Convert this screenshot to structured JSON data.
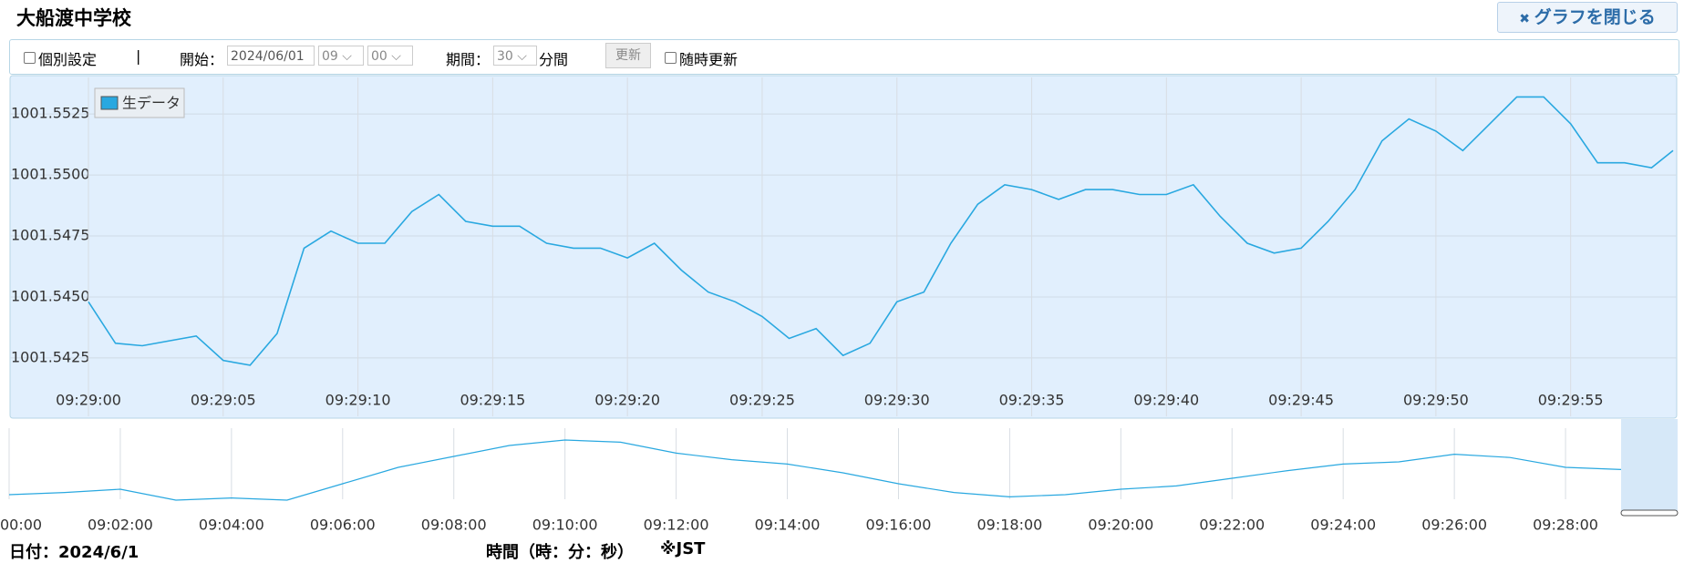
{
  "header": {
    "title": "大船渡中学校",
    "close_button": "グラフを閉じる"
  },
  "toolbar": {
    "individual_setting": "個別設定",
    "separator": "|",
    "start_label": "開始：",
    "start_date": "2024/06/01",
    "start_hour": "09",
    "start_minute": "00",
    "period_label": "期間：",
    "period_value": "30",
    "period_unit": "分間",
    "update_button": "更新",
    "auto_update": "随時更新"
  },
  "chart_data": [
    {
      "type": "line",
      "series": [
        {
          "name": "生データ",
          "color": "#29a8e0",
          "values": [
            1001.5448,
            1001.5431,
            1001.543,
            1001.5432,
            1001.5434,
            1001.5424,
            1001.5422,
            1001.5435,
            1001.547,
            1001.5477,
            1001.5472,
            1001.5472,
            1001.5485,
            1001.5492,
            1001.5481,
            1001.5479,
            1001.5479,
            1001.5472,
            1001.547,
            1001.547,
            1001.5466,
            1001.5472,
            1001.5461,
            1001.5452,
            1001.5448,
            1001.5442,
            1001.5433,
            1001.5437,
            1001.5426,
            1001.5431,
            1001.5448,
            1001.5452,
            1001.5472,
            1001.5488,
            1001.5496,
            1001.5494,
            1001.549,
            1001.5494,
            1001.5494,
            1001.5492,
            1001.5492,
            1001.5496,
            1001.5483,
            1001.5472,
            1001.5468,
            1001.547,
            1001.5481,
            1001.5494,
            1001.5514,
            1001.5523,
            1001.5518,
            1001.551,
            1001.5521,
            1001.5532,
            1001.5532,
            1001.5521,
            1001.5505,
            1001.5505,
            1001.5503,
            1001.551
          ]
        }
      ],
      "x": [
        0,
        1,
        2,
        3,
        4,
        5,
        6,
        7,
        8,
        9,
        10,
        11,
        12,
        13,
        14,
        15,
        16,
        17,
        18,
        19,
        20,
        21,
        22,
        23,
        24,
        25,
        26,
        27,
        28,
        29,
        30,
        31,
        32,
        33,
        34,
        35,
        36,
        37,
        38,
        39,
        40,
        41,
        42,
        43,
        44,
        45,
        46,
        47,
        48,
        49,
        50,
        51,
        52,
        53,
        54,
        55,
        56,
        57,
        58,
        58.8
      ],
      "xlim": [
        0,
        58.8
      ],
      "xticks": [
        {
          "value": 0,
          "label": "09:29:00"
        },
        {
          "value": 5,
          "label": "09:29:05"
        },
        {
          "value": 10,
          "label": "09:29:10"
        },
        {
          "value": 15,
          "label": "09:29:15"
        },
        {
          "value": 20,
          "label": "09:29:20"
        },
        {
          "value": 25,
          "label": "09:29:25"
        },
        {
          "value": 30,
          "label": "09:29:30"
        },
        {
          "value": 35,
          "label": "09:29:35"
        },
        {
          "value": 40,
          "label": "09:29:40"
        },
        {
          "value": 45,
          "label": "09:29:45"
        },
        {
          "value": 50,
          "label": "09:29:50"
        },
        {
          "value": 55,
          "label": "09:29:55"
        }
      ],
      "ylim": [
        1001.5413,
        1001.554
      ],
      "yticks": [
        1001.5425,
        {
          "value": 1001.545,
          "label": "1001.5450"
        },
        1001.5475,
        {
          "value": 1001.55,
          "label": "1001.5500"
        },
        1001.5525
      ],
      "grid": true,
      "legend": "top-left"
    },
    {
      "type": "line",
      "series": [
        {
          "color": "#29a8e0",
          "values": [
            10,
            12,
            15,
            5,
            7,
            5,
            20,
            35,
            45,
            55,
            60,
            58,
            48,
            42,
            38,
            30,
            20,
            12,
            8,
            10,
            15,
            18,
            25,
            32,
            38,
            40,
            47,
            44,
            35,
            33
          ]
        }
      ],
      "x": [
        0,
        1,
        2,
        3,
        4,
        5,
        6,
        7,
        8,
        9,
        10,
        11,
        12,
        13,
        14,
        15,
        16,
        17,
        18,
        19,
        20,
        21,
        22,
        23,
        24,
        25,
        26,
        27,
        28,
        29
      ],
      "xlim": [
        0,
        30
      ],
      "ylim": [
        0,
        75
      ],
      "xticks": [
        {
          "value": 0,
          "label": "00:00"
        },
        {
          "value": 2,
          "label": "09:02:00"
        },
        {
          "value": 4,
          "label": "09:04:00"
        },
        {
          "value": 6,
          "label": "09:06:00"
        },
        {
          "value": 8,
          "label": "09:08:00"
        },
        {
          "value": 10,
          "label": "09:10:00"
        },
        {
          "value": 12,
          "label": "09:12:00"
        },
        {
          "value": 14,
          "label": "09:14:00"
        },
        {
          "value": 16,
          "label": "09:16:00"
        },
        {
          "value": 18,
          "label": "09:18:00"
        },
        {
          "value": 20,
          "label": "09:20:00"
        },
        {
          "value": 22,
          "label": "09:22:00"
        },
        {
          "value": 24,
          "label": "09:24:00"
        },
        {
          "value": 26,
          "label": "09:26:00"
        },
        {
          "value": 28,
          "label": "09:28:00"
        }
      ],
      "grid": true
    }
  ],
  "footer": {
    "date": "日付：2024/6/1",
    "time_axis": "時間（時：分：秒）",
    "timezone": "※JST"
  }
}
